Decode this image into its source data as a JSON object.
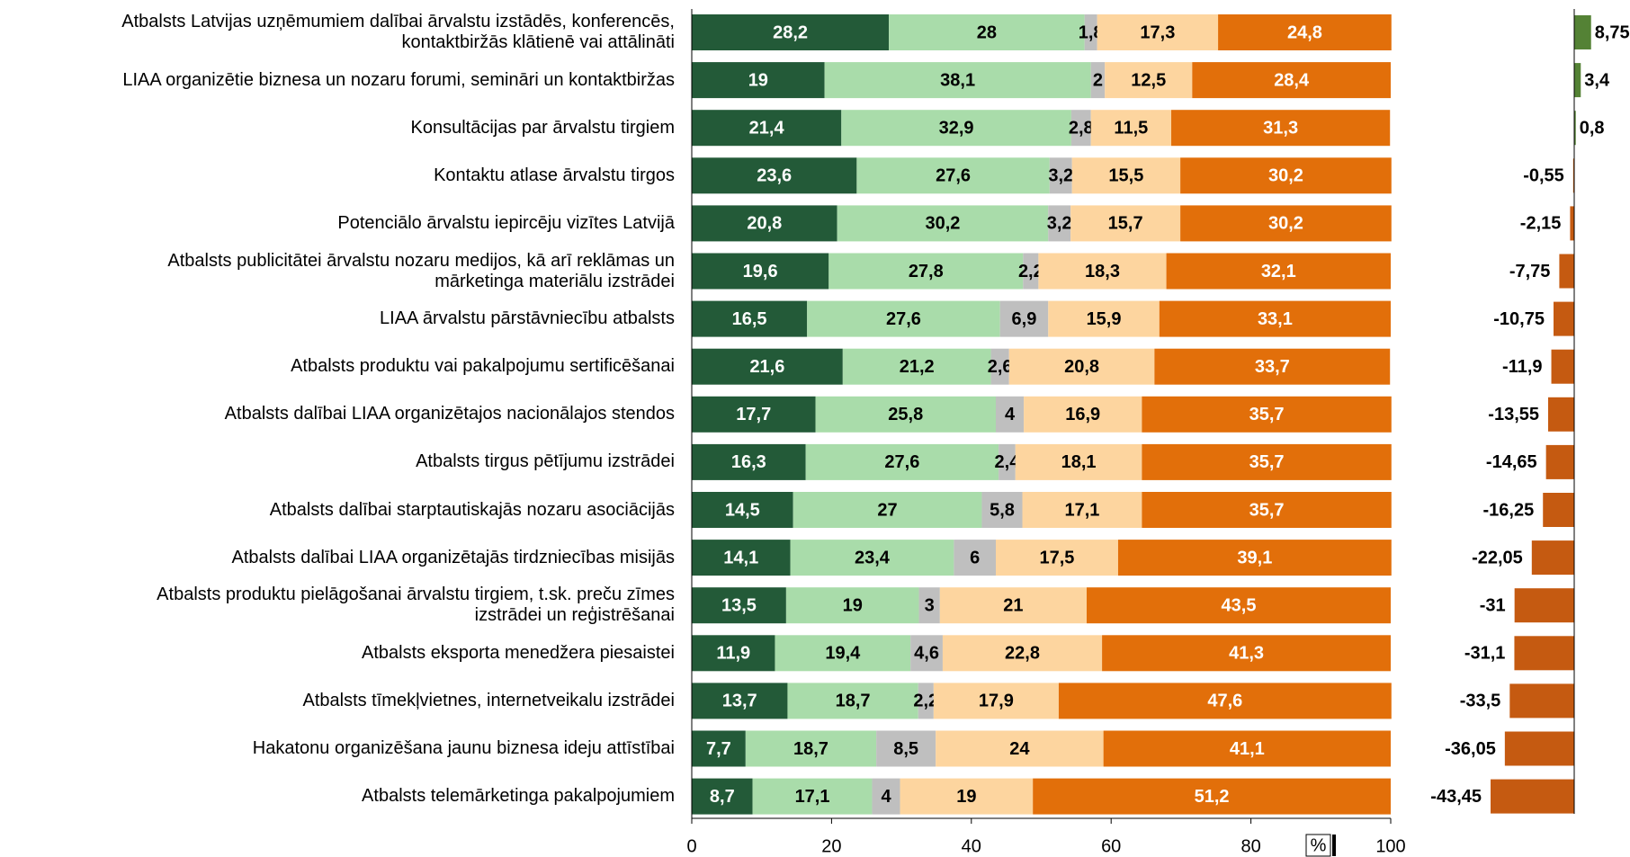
{
  "chart_data": [
    {
      "type": "stacked_barh",
      "categories": [
        "Atbalsts Latvijas uzņēmumiem dalībai ārvalstu izstādēs, konferencēs,\nkontaktbiržās klātienē vai attālināti",
        "LIAA organizētie biznesa un nozaru forumi, semināri un kontaktbiržas",
        "Konsultācijas par ārvalstu tirgiem",
        "Kontaktu atlase ārvalstu tirgos",
        "Potenciālo ārvalstu iepircēju vizītes Latvijā",
        "Atbalsts publicitātei ārvalstu nozaru medijos, kā arī reklāmas un\nmārketinga materiālu izstrādei",
        "LIAA ārvalstu pārstāvniecību atbalsts",
        "Atbalsts produktu vai pakalpojumu sertificēšanai",
        "Atbalsts dalībai LIAA organizētajos nacionālajos stendos",
        "Atbalsts tirgus pētījumu izstrādei",
        "Atbalsts dalībai starptautiskajās nozaru asociācijās",
        "Atbalsts dalībai LIAA organizētajās tirdzniecības misijās",
        "Atbalsts produktu pielāgošanai ārvalstu tirgiem, t.sk. preču zīmes\nizstrādei un reģistrēšanai",
        "Atbalsts eksporta menedžera piesaistei",
        "Atbalsts tīmekļvietnes, internetveikalu izstrādei",
        "Hakatonu organizēšana jaunu biznesa ideju attīstībai",
        "Atbalsts telemārketinga pakalpojumiem"
      ],
      "series": [
        {
          "color": "#235a38",
          "label_color": "#ffffff",
          "values": [
            28.2,
            19,
            21.4,
            23.6,
            20.8,
            19.6,
            16.5,
            21.6,
            17.7,
            16.3,
            14.5,
            14.1,
            13.5,
            11.9,
            13.7,
            7.7,
            8.7
          ],
          "value_labels": [
            "28,2",
            "19",
            "21,4",
            "23,6",
            "20,8",
            "19,6",
            "16,5",
            "21,6",
            "17,7",
            "16,3",
            "14,5",
            "14,1",
            "13,5",
            "11,9",
            "13,7",
            "7,7",
            "8,7"
          ]
        },
        {
          "color": "#a9dcaa",
          "label_color": "#000000",
          "values": [
            28,
            38.1,
            32.9,
            27.6,
            30.2,
            27.8,
            27.6,
            21.2,
            25.8,
            27.6,
            27,
            23.4,
            19,
            19.4,
            18.7,
            18.7,
            17.1
          ],
          "value_labels": [
            "28",
            "38,1",
            "32,9",
            "27,6",
            "30,2",
            "27,8",
            "27,6",
            "21,2",
            "25,8",
            "27,6",
            "27",
            "23,4",
            "19",
            "19,4",
            "18,7",
            "18,7",
            "17,1"
          ]
        },
        {
          "color": "#bfbfbf",
          "label_color": "#000000",
          "values": [
            1.8,
            2,
            2.8,
            3.2,
            3.2,
            2.2,
            6.9,
            2.6,
            4,
            2.4,
            5.8,
            6,
            3,
            4.6,
            2.2,
            8.5,
            4
          ],
          "value_labels": [
            "1,8",
            "2",
            "2,8",
            "3,2",
            "3,2",
            "2,2",
            "6,9",
            "2,6",
            "4",
            "2,4",
            "5,8",
            "6",
            "3",
            "4,6",
            "2,2",
            "8,5",
            "4"
          ]
        },
        {
          "color": "#fdd59f",
          "label_color": "#000000",
          "values": [
            17.3,
            12.5,
            11.5,
            15.5,
            15.7,
            18.3,
            15.9,
            20.8,
            16.9,
            18.1,
            17.1,
            17.5,
            21,
            22.8,
            17.9,
            24,
            19
          ],
          "value_labels": [
            "17,3",
            "12,5",
            "11,5",
            "15,5",
            "15,7",
            "18,3",
            "15,9",
            "20,8",
            "16,9",
            "18,1",
            "17,1",
            "17,5",
            "21",
            "22,8",
            "17,9",
            "24",
            "19"
          ]
        },
        {
          "color": "#e26f0a",
          "label_color": "#ffffff",
          "values": [
            24.8,
            28.4,
            31.3,
            30.2,
            30.2,
            32.1,
            33.1,
            33.7,
            35.7,
            35.7,
            35.7,
            39.1,
            43.5,
            41.3,
            47.6,
            41.1,
            51.2
          ],
          "value_labels": [
            "24,8",
            "28,4",
            "31,3",
            "30,2",
            "30,2",
            "32,1",
            "33,1",
            "33,7",
            "35,7",
            "35,7",
            "35,7",
            "39,1",
            "43,5",
            "41,3",
            "47,6",
            "41,1",
            "51,2"
          ]
        }
      ],
      "xlim": [
        0,
        100
      ],
      "xticks": [
        0,
        20,
        40,
        60,
        80,
        100
      ],
      "xlabel": "%"
    },
    {
      "type": "net_barh",
      "values": [
        8.75,
        3.4,
        0.8,
        -0.55,
        -2.15,
        -7.75,
        -10.75,
        -11.9,
        -13.55,
        -14.65,
        -16.25,
        -22.05,
        -31,
        -31.1,
        -33.5,
        -36.05,
        -43.45
      ],
      "value_labels": [
        "8,75",
        "3,4",
        "0,8",
        "-0,55",
        "-2,15",
        "-7,75",
        "-10,75",
        "-11,9",
        "-13,55",
        "-14,65",
        "-16,25",
        "-22,05",
        "-31",
        "-31,1",
        "-33,5",
        "-36,05",
        "-43,45"
      ],
      "positive_color": "#548235",
      "negative_color": "#c55a11"
    }
  ]
}
